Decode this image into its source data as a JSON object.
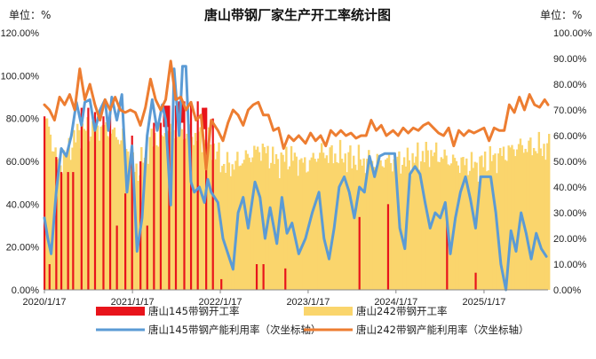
{
  "colors": {
    "tangshan145_open": "#e8141b",
    "tangshan242_open": "#fad56c",
    "tangshan145_util": "#5b9bd5",
    "tangshan242_util": "#ed7d31"
  },
  "chart_data": {
    "type": "bar",
    "title": "唐山带钢厂家生产开工率统计图",
    "left_unit": "单位：%",
    "right_unit": "单位：%",
    "x_ticks": [
      "2020/1/17",
      "2021/1/17",
      "2022/1/17",
      "2023/1/17",
      "2024/1/17",
      "2025/1/17"
    ],
    "y_left_ticks": [
      "0.00%",
      "20.00%",
      "40.00%",
      "60.00%",
      "80.00%",
      "100.00%",
      "120.00%"
    ],
    "y_right_ticks": [
      "0.00%",
      "10.00%",
      "20.00%",
      "30.00%",
      "40.00%",
      "50.00%",
      "60.00%",
      "70.00%",
      "80.00%",
      "90.00%",
      "100.00%"
    ],
    "ylim_left": [
      0,
      120
    ],
    "ylim_right": [
      0,
      100
    ],
    "x_range": [
      "2020/1/17",
      "2025/10/10"
    ],
    "grid": false,
    "legend_position": "bottom",
    "series": [
      {
        "name": "唐山145带钢开工率",
        "kind": "bar",
        "axis": "left",
        "points": [
          [
            "2020/1/17",
            81
          ],
          [
            "2020/2/7",
            12
          ],
          [
            "2020/3/6",
            62
          ],
          [
            "2020/3/27",
            55
          ],
          [
            "2020/4/24",
            55
          ],
          [
            "2020/5/15",
            55
          ],
          [
            "2020/6/19",
            85
          ],
          [
            "2020/7/17",
            85
          ],
          [
            "2020/8/14",
            83
          ],
          [
            "2020/9/18",
            81
          ],
          [
            "2020/10/16",
            81
          ],
          [
            "2020/11/13",
            30
          ],
          [
            "2020/12/18",
            45
          ],
          [
            "2021/1/15",
            72
          ],
          [
            "2021/2/19",
            60
          ],
          [
            "2021/3/19",
            30
          ],
          [
            "2021/4/16",
            78
          ],
          [
            "2021/5/14",
            78
          ],
          [
            "2021/6/18",
            86
          ],
          [
            "2021/7/16",
            86
          ],
          [
            "2021/8/20",
            88
          ],
          [
            "2021/9/17",
            88
          ],
          [
            "2021/10/15",
            88
          ],
          [
            "2021/11/19",
            85
          ],
          [
            "2021/12/17",
            80
          ],
          [
            "2022/1/21",
            5
          ],
          [
            "2022/6/17",
            12
          ],
          [
            "2022/7/15",
            12
          ],
          [
            "2022/10/14",
            10
          ],
          [
            "2023/8/18",
            34
          ],
          [
            "2023/12/15",
            40
          ],
          [
            "2024/8/16",
            34
          ],
          [
            "2024/12/13",
            8
          ]
        ]
      },
      {
        "name": "唐山242带钢开工率",
        "kind": "bar",
        "axis": "left",
        "keypoints": [
          [
            "2020/1/17",
            80
          ],
          [
            "2020/3/13",
            58
          ],
          [
            "2020/6/5",
            74
          ],
          [
            "2020/9/11",
            76
          ],
          [
            "2020/12/4",
            70
          ],
          [
            "2021/2/5",
            55
          ],
          [
            "2021/4/2",
            70
          ],
          [
            "2021/7/2",
            74
          ],
          [
            "2021/10/1",
            72
          ],
          [
            "2021/12/3",
            68
          ],
          [
            "2022/1/28",
            58
          ],
          [
            "2022/3/4",
            58
          ],
          [
            "2022/5/6",
            62
          ],
          [
            "2022/7/1",
            66
          ],
          [
            "2022/9/2",
            60
          ],
          [
            "2022/11/4",
            62
          ],
          [
            "2023/1/6",
            58
          ],
          [
            "2023/3/3",
            64
          ],
          [
            "2023/6/2",
            62
          ],
          [
            "2023/9/1",
            60
          ],
          [
            "2023/12/1",
            60
          ],
          [
            "2024/3/1",
            60
          ],
          [
            "2024/6/7",
            64
          ],
          [
            "2024/9/6",
            60
          ],
          [
            "2024/12/6",
            58
          ],
          [
            "2025/3/7",
            62
          ],
          [
            "2025/6/6",
            67
          ],
          [
            "2025/10/10",
            66
          ]
        ]
      },
      {
        "name": "唐山145带钢产能利用率（次坐标轴）",
        "kind": "line",
        "axis": "right",
        "points": [
          [
            "2020/1/17",
            28
          ],
          [
            "2020/1/31",
            20
          ],
          [
            "2020/2/14",
            14
          ],
          [
            "2020/3/6",
            38
          ],
          [
            "2020/3/27",
            55
          ],
          [
            "2020/4/17",
            52
          ],
          [
            "2020/5/8",
            60
          ],
          [
            "2020/5/29",
            73
          ],
          [
            "2020/6/19",
            64
          ],
          [
            "2020/7/3",
            73
          ],
          [
            "2020/7/24",
            74
          ],
          [
            "2020/8/14",
            62
          ],
          [
            "2020/9/4",
            70
          ],
          [
            "2020/9/25",
            74
          ],
          [
            "2020/10/9",
            62
          ],
          [
            "2020/10/23",
            75
          ],
          [
            "2020/11/13",
            66
          ],
          [
            "2020/12/4",
            76
          ],
          [
            "2020/12/25",
            38
          ],
          [
            "2021/1/15",
            56
          ],
          [
            "2021/2/5",
            15
          ],
          [
            "2021/2/26",
            28
          ],
          [
            "2021/3/19",
            60
          ],
          [
            "2021/4/9",
            74
          ],
          [
            "2021/4/30",
            62
          ],
          [
            "2021/5/21",
            72
          ],
          [
            "2021/6/4",
            66
          ],
          [
            "2021/6/25",
            33
          ],
          [
            "2021/7/9",
            86
          ],
          [
            "2021/7/30",
            60
          ],
          [
            "2021/8/13",
            87
          ],
          [
            "2021/8/27",
            87
          ],
          [
            "2021/9/17",
            42
          ],
          [
            "2021/10/1",
            38
          ],
          [
            "2021/10/22",
            40
          ],
          [
            "2021/11/12",
            34
          ],
          [
            "2021/11/26",
            43
          ],
          [
            "2021/12/10",
            38
          ],
          [
            "2022/1/7",
            34
          ],
          [
            "2022/1/28",
            20
          ],
          [
            "2022/2/18",
            14
          ],
          [
            "2022/3/11",
            8
          ],
          [
            "2022/4/1",
            30
          ],
          [
            "2022/4/22",
            36
          ],
          [
            "2022/5/13",
            24
          ],
          [
            "2022/6/10",
            42
          ],
          [
            "2022/7/1",
            36
          ],
          [
            "2022/7/22",
            20
          ],
          [
            "2022/8/12",
            32
          ],
          [
            "2022/9/9",
            18
          ],
          [
            "2022/9/30",
            36
          ],
          [
            "2022/10/21",
            22
          ],
          [
            "2022/11/11",
            26
          ],
          [
            "2022/12/9",
            14
          ],
          [
            "2023/1/6",
            20
          ],
          [
            "2023/2/3",
            30
          ],
          [
            "2023/3/3",
            38
          ],
          [
            "2023/3/24",
            20
          ],
          [
            "2023/4/14",
            12
          ],
          [
            "2023/5/5",
            24
          ],
          [
            "2023/5/26",
            40
          ],
          [
            "2023/6/16",
            44
          ],
          [
            "2023/7/7",
            38
          ],
          [
            "2023/7/28",
            28
          ],
          [
            "2023/8/18",
            40
          ],
          [
            "2023/9/8",
            38
          ],
          [
            "2023/9/29",
            52
          ],
          [
            "2023/10/20",
            44
          ],
          [
            "2023/11/10",
            52
          ],
          [
            "2023/12/1",
            53
          ],
          [
            "2023/12/22",
            53
          ],
          [
            "2024/1/12",
            53
          ],
          [
            "2024/2/2",
            24
          ],
          [
            "2024/2/23",
            16
          ],
          [
            "2024/3/15",
            45
          ],
          [
            "2024/4/5",
            48
          ],
          [
            "2024/4/26",
            45
          ],
          [
            "2024/5/17",
            34
          ],
          [
            "2024/6/7",
            24
          ],
          [
            "2024/6/28",
            30
          ],
          [
            "2024/7/19",
            28
          ],
          [
            "2024/8/9",
            34
          ],
          [
            "2024/8/30",
            14
          ],
          [
            "2024/9/20",
            28
          ],
          [
            "2024/10/11",
            38
          ],
          [
            "2024/11/1",
            44
          ],
          [
            "2024/11/22",
            35
          ],
          [
            "2024/12/13",
            24
          ],
          [
            "2025/1/3",
            44
          ],
          [
            "2025/1/24",
            44
          ],
          [
            "2025/2/14",
            44
          ],
          [
            "2025/3/7",
            30
          ],
          [
            "2025/3/28",
            10
          ],
          [
            "2025/4/18",
            0
          ],
          [
            "2025/5/9",
            23
          ],
          [
            "2025/5/30",
            15
          ],
          [
            "2025/6/20",
            30
          ],
          [
            "2025/7/11",
            22
          ],
          [
            "2025/8/1",
            12
          ],
          [
            "2025/8/22",
            22
          ],
          [
            "2025/9/12",
            16
          ],
          [
            "2025/10/3",
            13
          ]
        ]
      },
      {
        "name": "唐山242带钢产能利用率（次坐标轴）",
        "kind": "line",
        "axis": "right",
        "points": [
          [
            "2020/1/17",
            72
          ],
          [
            "2020/2/7",
            70
          ],
          [
            "2020/2/28",
            66
          ],
          [
            "2020/3/20",
            75
          ],
          [
            "2020/4/10",
            72
          ],
          [
            "2020/5/1",
            76
          ],
          [
            "2020/5/22",
            70
          ],
          [
            "2020/6/12",
            86
          ],
          [
            "2020/7/3",
            74
          ],
          [
            "2020/7/24",
            80
          ],
          [
            "2020/8/14",
            72
          ],
          [
            "2020/9/4",
            66
          ],
          [
            "2020/9/25",
            74
          ],
          [
            "2020/10/16",
            70
          ],
          [
            "2020/11/6",
            75
          ],
          [
            "2020/11/27",
            70
          ],
          [
            "2020/12/18",
            69
          ],
          [
            "2021/1/8",
            70
          ],
          [
            "2021/1/29",
            69
          ],
          [
            "2021/2/19",
            64
          ],
          [
            "2021/3/12",
            71
          ],
          [
            "2021/4/2",
            82
          ],
          [
            "2021/4/23",
            74
          ],
          [
            "2021/5/14",
            70
          ],
          [
            "2021/6/4",
            74
          ],
          [
            "2021/6/25",
            89
          ],
          [
            "2021/7/16",
            74
          ],
          [
            "2021/8/6",
            75
          ],
          [
            "2021/8/27",
            70
          ],
          [
            "2021/9/17",
            73
          ],
          [
            "2021/10/8",
            66
          ],
          [
            "2021/10/29",
            68
          ],
          [
            "2021/11/19",
            47
          ],
          [
            "2021/12/10",
            66
          ],
          [
            "2022/1/7",
            62
          ],
          [
            "2022/1/28",
            58
          ],
          [
            "2022/2/18",
            65
          ],
          [
            "2022/3/11",
            70
          ],
          [
            "2022/4/1",
            68
          ],
          [
            "2022/4/22",
            64
          ],
          [
            "2022/5/13",
            70
          ],
          [
            "2022/6/3",
            72
          ],
          [
            "2022/6/24",
            73
          ],
          [
            "2022/7/15",
            68
          ],
          [
            "2022/8/5",
            68
          ],
          [
            "2022/8/26",
            62
          ],
          [
            "2022/9/16",
            63
          ],
          [
            "2022/10/7",
            55
          ],
          [
            "2022/10/28",
            60
          ],
          [
            "2022/11/18",
            58
          ],
          [
            "2022/12/9",
            60
          ],
          [
            "2023/1/6",
            57
          ],
          [
            "2023/1/27",
            61
          ],
          [
            "2023/2/17",
            58
          ],
          [
            "2023/3/10",
            60
          ],
          [
            "2023/3/31",
            56
          ],
          [
            "2023/4/21",
            62
          ],
          [
            "2023/5/12",
            60
          ],
          [
            "2023/6/2",
            62
          ],
          [
            "2023/6/23",
            60
          ],
          [
            "2023/7/14",
            61
          ],
          [
            "2023/8/4",
            59
          ],
          [
            "2023/8/25",
            60
          ],
          [
            "2023/9/15",
            60
          ],
          [
            "2023/10/6",
            66
          ],
          [
            "2023/10/27",
            62
          ],
          [
            "2023/11/17",
            64
          ],
          [
            "2023/12/8",
            60
          ],
          [
            "2024/1/5",
            62
          ],
          [
            "2024/1/26",
            60
          ],
          [
            "2024/2/16",
            63
          ],
          [
            "2024/3/8",
            61
          ],
          [
            "2024/3/29",
            63
          ],
          [
            "2024/4/19",
            62
          ],
          [
            "2024/5/10",
            64
          ],
          [
            "2024/5/31",
            65
          ],
          [
            "2024/6/21",
            63
          ],
          [
            "2024/7/12",
            61
          ],
          [
            "2024/8/2",
            60
          ],
          [
            "2024/8/23",
            63
          ],
          [
            "2024/9/13",
            56
          ],
          [
            "2024/10/4",
            62
          ],
          [
            "2024/10/25",
            60
          ],
          [
            "2024/11/15",
            62
          ],
          [
            "2024/12/6",
            61
          ],
          [
            "2024/12/27",
            62
          ],
          [
            "2025/1/17",
            63
          ],
          [
            "2025/2/7",
            58
          ],
          [
            "2025/2/28",
            63
          ],
          [
            "2025/3/21",
            62
          ],
          [
            "2025/4/11",
            62
          ],
          [
            "2025/5/2",
            72
          ],
          [
            "2025/5/23",
            69
          ],
          [
            "2025/6/13",
            75
          ],
          [
            "2025/7/4",
            70
          ],
          [
            "2025/7/25",
            76
          ],
          [
            "2025/8/15",
            72
          ],
          [
            "2025/9/5",
            71
          ],
          [
            "2025/9/26",
            74
          ],
          [
            "2025/10/10",
            72
          ]
        ]
      }
    ]
  }
}
